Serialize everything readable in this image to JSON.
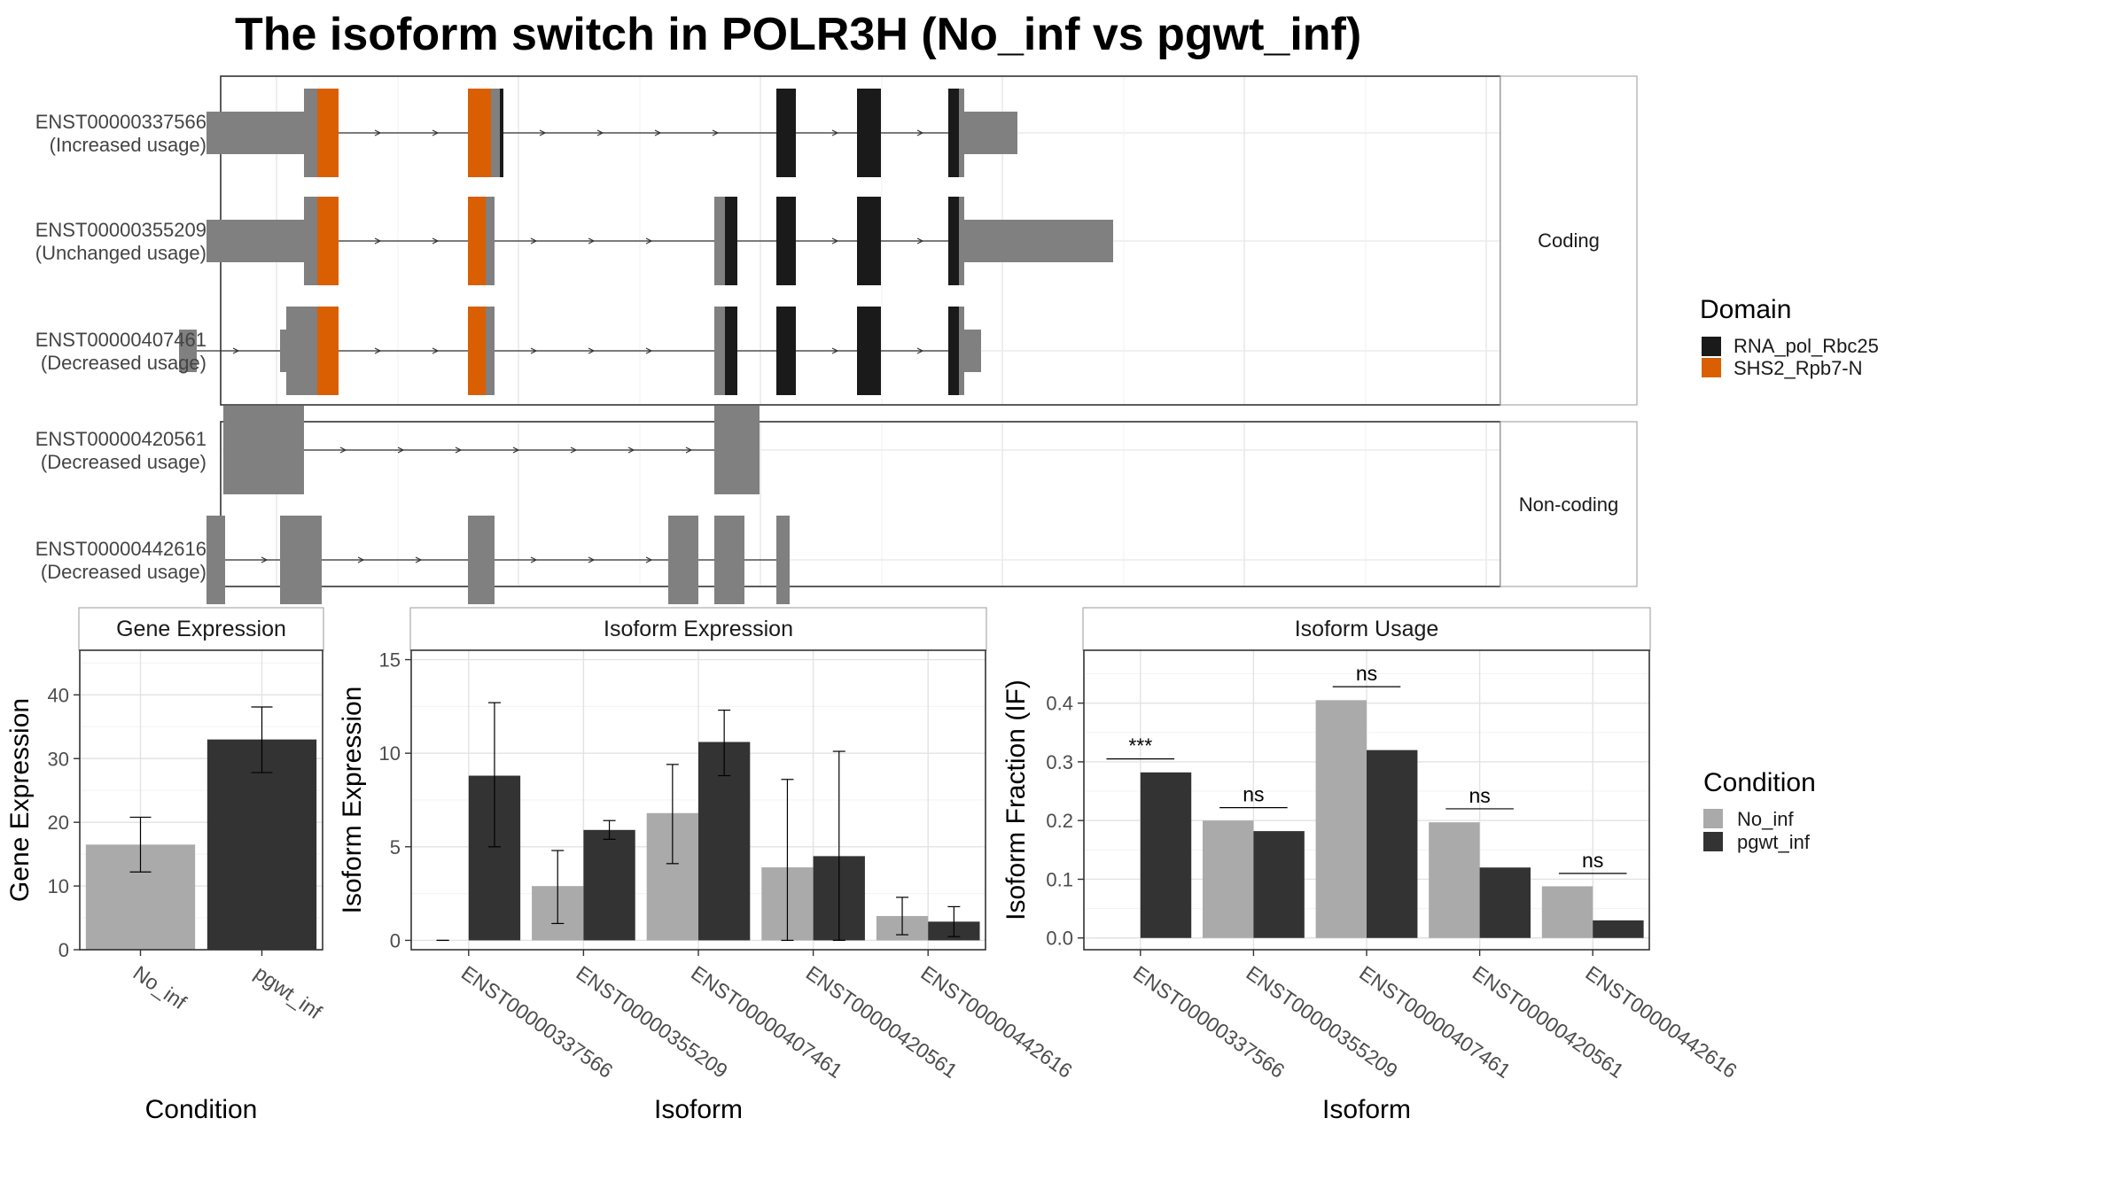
{
  "title": "The isoform switch in POLR3H (No_inf vs pgwt_inf)",
  "structure": {
    "facets": [
      {
        "label": "Coding",
        "isoforms": [
          {
            "id": "ENST00000337566",
            "usage": "(Increased usage)",
            "exons": [
              [
                233,
                343,
                "utr"
              ],
              [
                343,
                358,
                "cds"
              ],
              [
                358,
                382,
                "SHS2_Rpb7-N"
              ],
              [
                528,
                554,
                "SHS2_Rpb7-N"
              ],
              [
                554,
                564,
                "cds"
              ],
              [
                564,
                568,
                "RNA_pol_Rbc25"
              ],
              [
                876,
                898,
                "RNA_pol_Rbc25"
              ],
              [
                967,
                994,
                "RNA_pol_Rbc25"
              ],
              [
                1070,
                1082,
                "RNA_pol_Rbc25"
              ],
              [
                1082,
                1088,
                "cds"
              ],
              [
                1088,
                1148,
                "utr"
              ]
            ]
          },
          {
            "id": "ENST00000355209",
            "usage": "(Unchanged usage)",
            "exons": [
              [
                233,
                343,
                "utr"
              ],
              [
                343,
                358,
                "cds"
              ],
              [
                358,
                382,
                "SHS2_Rpb7-N"
              ],
              [
                528,
                548,
                "SHS2_Rpb7-N"
              ],
              [
                548,
                558,
                "cds"
              ],
              [
                806,
                818,
                "cds"
              ],
              [
                818,
                832,
                "RNA_pol_Rbc25"
              ],
              [
                876,
                898,
                "RNA_pol_Rbc25"
              ],
              [
                967,
                994,
                "RNA_pol_Rbc25"
              ],
              [
                1070,
                1082,
                "RNA_pol_Rbc25"
              ],
              [
                1082,
                1088,
                "cds"
              ],
              [
                1088,
                1256,
                "utr"
              ]
            ]
          },
          {
            "id": "ENST00000407461",
            "usage": "(Decreased usage)",
            "exons": [
              [
                202,
                222,
                "utr"
              ],
              [
                316,
                323,
                "utr"
              ],
              [
                323,
                358,
                "cds"
              ],
              [
                358,
                382,
                "SHS2_Rpb7-N"
              ],
              [
                528,
                548,
                "SHS2_Rpb7-N"
              ],
              [
                548,
                558,
                "cds"
              ],
              [
                806,
                818,
                "cds"
              ],
              [
                818,
                832,
                "RNA_pol_Rbc25"
              ],
              [
                876,
                898,
                "RNA_pol_Rbc25"
              ],
              [
                967,
                994,
                "RNA_pol_Rbc25"
              ],
              [
                1070,
                1082,
                "RNA_pol_Rbc25"
              ],
              [
                1082,
                1088,
                "cds"
              ],
              [
                1088,
                1107,
                "utr"
              ]
            ]
          }
        ]
      },
      {
        "label": "Non-coding",
        "isoforms": [
          {
            "id": "ENST00000420561",
            "usage": "(Decreased usage)",
            "exons": [
              [
                252,
                343,
                "nc"
              ],
              [
                806,
                857,
                "nc"
              ]
            ]
          },
          {
            "id": "ENST00000442616",
            "usage": "(Decreased usage)",
            "exons": [
              [
                233,
                254,
                "nc"
              ],
              [
                316,
                363,
                "nc"
              ],
              [
                528,
                558,
                "nc"
              ],
              [
                754,
                788,
                "nc"
              ],
              [
                806,
                840,
                "nc"
              ],
              [
                876,
                891,
                "nc"
              ]
            ]
          }
        ]
      }
    ]
  },
  "legend_domain": {
    "title": "Domain",
    "items": [
      {
        "label": "RNA_pol_Rbc25",
        "color": "#1a1a1a"
      },
      {
        "label": "SHS2_Rpb7-N",
        "color": "#d95f02"
      }
    ]
  },
  "legend_condition": {
    "title": "Condition",
    "items": [
      {
        "label": "No_inf",
        "color": "#aaaaaa"
      },
      {
        "label": "pgwt_inf",
        "color": "#333333"
      }
    ]
  },
  "chart_data": [
    {
      "type": "bar",
      "title": "Gene Expression",
      "xlabel": "Condition",
      "ylabel": "Gene Expression",
      "categories": [
        "No_inf",
        "pgwt_inf"
      ],
      "values": [
        16.5,
        33.0
      ],
      "error": [
        [
          12.2,
          20.8
        ],
        [
          27.8,
          38.1
        ]
      ],
      "ylim": [
        0,
        47
      ],
      "yticks": [
        0,
        10,
        20,
        30,
        40
      ]
    },
    {
      "type": "bar",
      "title": "Isoform Expression",
      "xlabel": "Isoform",
      "ylabel": "Isoform Expression",
      "categories": [
        "ENST00000337566",
        "ENST00000355209",
        "ENST00000407461",
        "ENST00000420561",
        "ENST00000442616"
      ],
      "series": [
        {
          "name": "No_inf",
          "values": [
            0,
            2.9,
            6.8,
            3.9,
            1.3
          ],
          "error": [
            [
              0,
              0
            ],
            [
              0.9,
              4.8
            ],
            [
              4.1,
              9.4
            ],
            [
              0.0,
              8.6
            ],
            [
              0.3,
              2.3
            ]
          ]
        },
        {
          "name": "pgwt_inf",
          "values": [
            8.8,
            5.9,
            10.6,
            4.5,
            1.0
          ],
          "error": [
            [
              5.0,
              12.7
            ],
            [
              5.4,
              6.4
            ],
            [
              8.8,
              12.3
            ],
            [
              0.0,
              10.1
            ],
            [
              0.2,
              1.8
            ]
          ]
        }
      ],
      "ylim": [
        -0.5,
        15.5
      ],
      "yticks": [
        0,
        5,
        10,
        15
      ]
    },
    {
      "type": "bar",
      "title": "Isoform Usage",
      "xlabel": "Isoform",
      "ylabel": "Isoform Fraction (IF)",
      "categories": [
        "ENST00000337566",
        "ENST00000355209",
        "ENST00000407461",
        "ENST00000420561",
        "ENST00000442616"
      ],
      "series": [
        {
          "name": "No_inf",
          "values": [
            0.0,
            0.2,
            0.405,
            0.197,
            0.088
          ]
        },
        {
          "name": "pgwt_inf",
          "values": [
            0.282,
            0.182,
            0.32,
            0.12,
            0.03
          ]
        }
      ],
      "significance": [
        {
          "label": "***",
          "y": 0.305
        },
        {
          "label": "ns",
          "y": 0.222
        },
        {
          "label": "ns",
          "y": 0.428
        },
        {
          "label": "ns",
          "y": 0.22
        },
        {
          "label": "ns",
          "y": 0.11
        }
      ],
      "ylim": [
        -0.02,
        0.49
      ],
      "yticks": [
        0.0,
        0.1,
        0.2,
        0.3,
        0.4
      ],
      "ytick_labels": [
        "0.0",
        "0.1",
        "0.2",
        "0.3",
        "0.4"
      ]
    }
  ]
}
